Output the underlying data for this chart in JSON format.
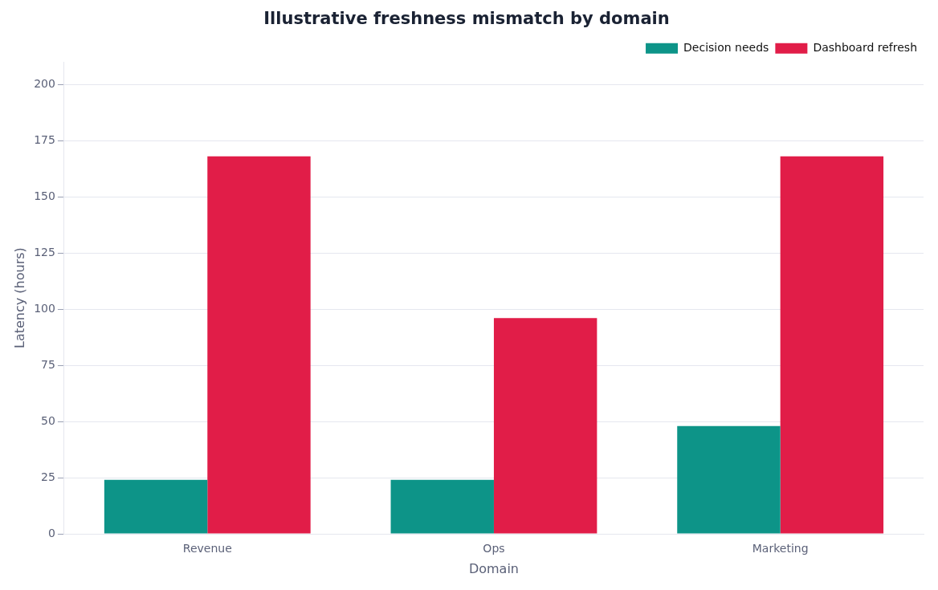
{
  "chart_data": {
    "type": "bar",
    "title": "Illustrative freshness mismatch by domain",
    "xlabel": "Domain",
    "ylabel": "Latency (hours)",
    "categories": [
      "Revenue",
      "Ops",
      "Marketing"
    ],
    "series": [
      {
        "name": "Decision needs",
        "color": "#0d9488",
        "values": [
          24,
          24,
          48
        ]
      },
      {
        "name": "Dashboard refresh",
        "color": "#e11d48",
        "values": [
          168,
          96,
          168
        ]
      }
    ],
    "ylim": [
      0,
      210
    ],
    "yticks": [
      0,
      25,
      50,
      75,
      100,
      125,
      150,
      175,
      200
    ],
    "grid": "y",
    "legend": "top right"
  }
}
